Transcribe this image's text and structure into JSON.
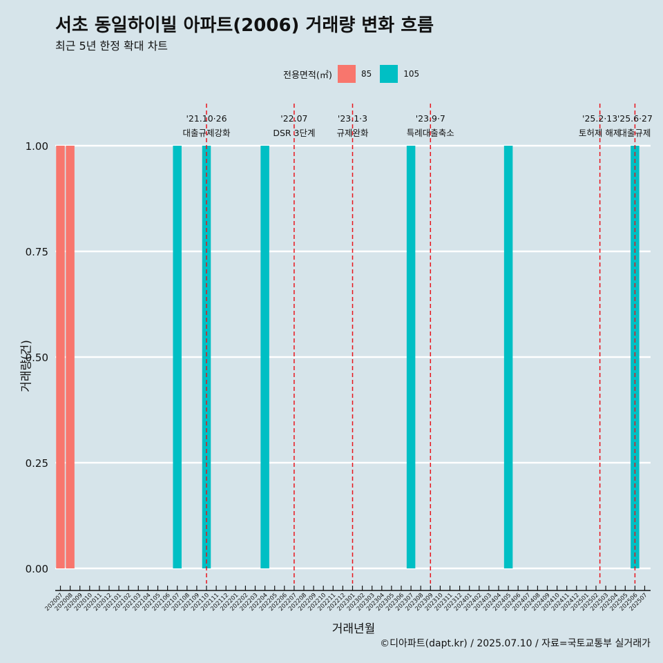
{
  "title": "서초 동일하이빌 아파트(2006) 거래량 변화 흐름",
  "subtitle": "최근 5년 한정 확대 차트",
  "legend": {
    "title": "전용면적(㎡)",
    "items": [
      {
        "label": "85",
        "color": "#F8766D"
      },
      {
        "label": "105",
        "color": "#00BFC4"
      }
    ]
  },
  "caption": "©디아파트(dapt.kr) / 2025.07.10 / 자료=국토교통부 실거래가",
  "chart_data": {
    "type": "bar",
    "stacked": true,
    "xlabel": "거래년월",
    "ylabel": "거래량(건)",
    "ylim": [
      0,
      1
    ],
    "yticks": [
      "0.00",
      "0.25",
      "0.50",
      "0.75",
      "1.00"
    ],
    "grid": "horizontal",
    "legend_position": "top",
    "categories": [
      "202007",
      "202008",
      "202009",
      "202010",
      "202011",
      "202012",
      "202101",
      "202102",
      "202103",
      "202104",
      "202105",
      "202106",
      "202107",
      "202108",
      "202109",
      "202110",
      "202111",
      "202112",
      "202201",
      "202202",
      "202203",
      "202204",
      "202205",
      "202206",
      "202207",
      "202208",
      "202209",
      "202210",
      "202211",
      "202212",
      "202301",
      "202302",
      "202303",
      "202304",
      "202305",
      "202306",
      "202307",
      "202308",
      "202309",
      "202310",
      "202311",
      "202312",
      "202401",
      "202402",
      "202403",
      "202404",
      "202405",
      "202406",
      "202407",
      "202408",
      "202409",
      "202410",
      "202411",
      "202412",
      "202501",
      "202502",
      "202503",
      "202504",
      "202505",
      "202506",
      "202507"
    ],
    "series": [
      {
        "name": "85",
        "color": "#F8766D",
        "points": [
          {
            "x": "202007",
            "y": 1
          },
          {
            "x": "202008",
            "y": 1
          }
        ]
      },
      {
        "name": "105",
        "color": "#00BFC4",
        "points": [
          {
            "x": "202107",
            "y": 1
          },
          {
            "x": "202110",
            "y": 1
          },
          {
            "x": "202204",
            "y": 1
          },
          {
            "x": "202307",
            "y": 1
          },
          {
            "x": "202405",
            "y": 1
          },
          {
            "x": "202506",
            "y": 1
          }
        ]
      }
    ],
    "annotations": [
      {
        "x": "202110",
        "offset": 0.0,
        "date": "'21.10·26",
        "label": "대출규제강화"
      },
      {
        "x": "202207",
        "offset": 0.0,
        "date": "'22.07",
        "label": "DSR 3단계"
      },
      {
        "x": "202301",
        "offset": 0.0,
        "date": "'23.1·3",
        "label": "규제완화"
      },
      {
        "x": "202309",
        "offset": 0.0,
        "date": "'23.9·7",
        "label": "특례대출축소"
      },
      {
        "x": "202502",
        "offset": 0.4,
        "date": "'25.2·13",
        "label": "토허제 해제"
      },
      {
        "x": "202506",
        "offset": 0.0,
        "date": "'25.6·27",
        "label": "대출규제"
      }
    ]
  }
}
